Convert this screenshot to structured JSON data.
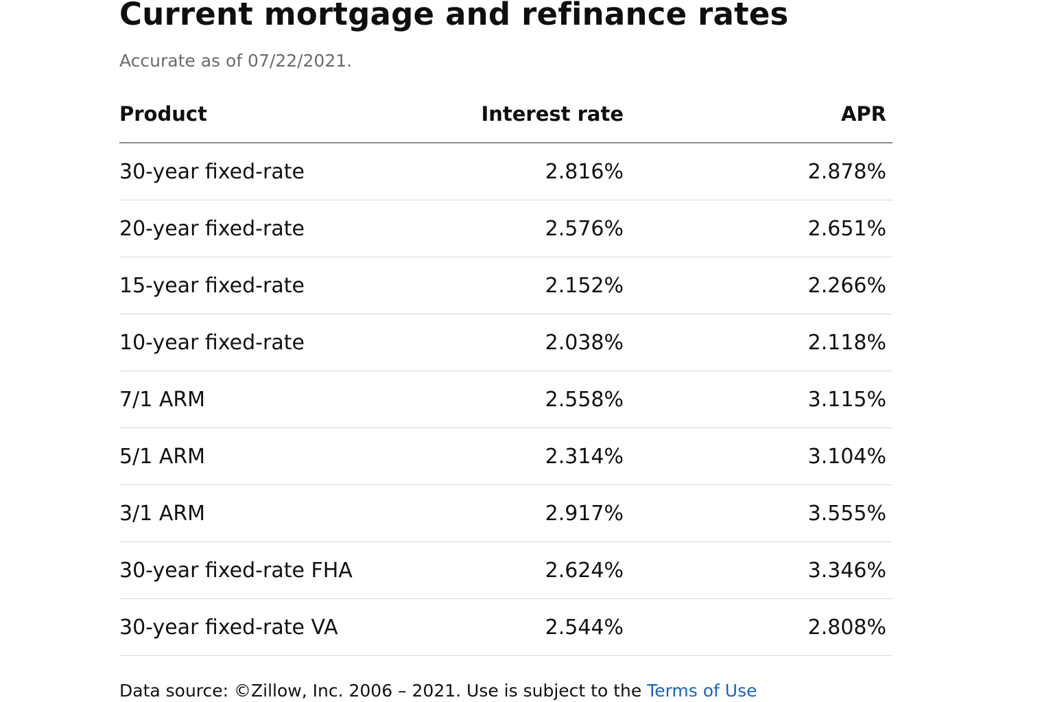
{
  "header": {
    "title": "Current mortgage and refinance rates",
    "subtitle": "Accurate as of 07/22/2021."
  },
  "table": {
    "columns": [
      "Product",
      "Interest rate",
      "APR"
    ],
    "rows": [
      {
        "product": "30-year fixed-rate",
        "interest_rate": "2.816%",
        "apr": "2.878%"
      },
      {
        "product": "20-year fixed-rate",
        "interest_rate": "2.576%",
        "apr": "2.651%"
      },
      {
        "product": "15-year fixed-rate",
        "interest_rate": "2.152%",
        "apr": "2.266%"
      },
      {
        "product": "10-year fixed-rate",
        "interest_rate": "2.038%",
        "apr": "2.118%"
      },
      {
        "product": "7/1 ARM",
        "interest_rate": "2.558%",
        "apr": "3.115%"
      },
      {
        "product": "5/1 ARM",
        "interest_rate": "2.314%",
        "apr": "3.104%"
      },
      {
        "product": "3/1 ARM",
        "interest_rate": "2.917%",
        "apr": "3.555%"
      },
      {
        "product": "30-year fixed-rate FHA",
        "interest_rate": "2.624%",
        "apr": "3.346%"
      },
      {
        "product": "30-year fixed-rate VA",
        "interest_rate": "2.544%",
        "apr": "2.808%"
      }
    ]
  },
  "footer": {
    "source_text": "Data source: ©Zillow, Inc. 2006 – 2021. Use is subject to the ",
    "terms_link": "Terms of Use"
  },
  "colors": {
    "link": "#1a62c2",
    "subtitle": "#6b6b6b",
    "divider": "#d6d6d6"
  }
}
